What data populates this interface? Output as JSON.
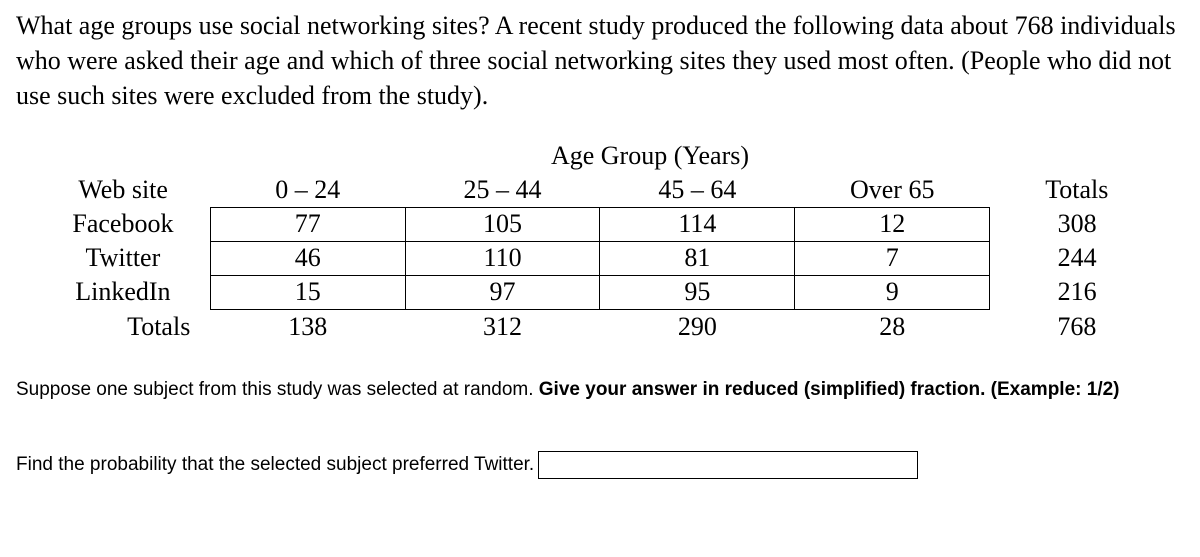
{
  "intro": "What age groups use social networking sites?  A recent study produced the following data about 768 individuals who were asked their age and which of three social networking sites they used most often.  (People who did not use such sites were excluded from the study).",
  "table": {
    "super_header": "Age Group (Years)",
    "header": {
      "rowlabel": "Web site",
      "c1": "0 – 24",
      "c2": "25 – 44",
      "c3": "45 – 64",
      "c4": "Over 65",
      "totals": "Totals"
    },
    "rows": {
      "r1": {
        "label": "Facebook",
        "c1": "77",
        "c2": "105",
        "c3": "114",
        "c4": "12",
        "total": "308"
      },
      "r2": {
        "label": "Twitter",
        "c1": "46",
        "c2": "110",
        "c3": "81",
        "c4": "7",
        "total": "244"
      },
      "r3": {
        "label": "LinkedIn",
        "c1": "15",
        "c2": "97",
        "c3": "95",
        "c4": "9",
        "total": "216"
      }
    },
    "totals": {
      "label": "Totals",
      "c1": "138",
      "c2": "312",
      "c3": "290",
      "c4": "28",
      "total": "768"
    }
  },
  "instruction_plain": "Suppose one subject from this study was selected at random. ",
  "instruction_bold": "Give your answer in reduced (simplified) fraction. (Example: 1/2)",
  "question": "Find the probability that the selected subject preferred Twitter.",
  "answer_value": ""
}
